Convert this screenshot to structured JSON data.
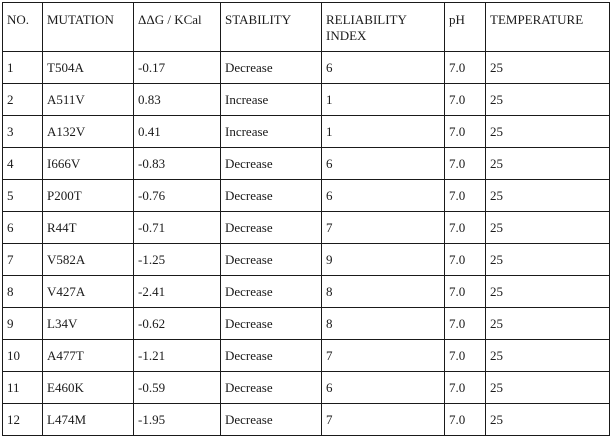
{
  "table": {
    "headers": [
      "NO.",
      "MUTATION",
      "ΔΔG / KCal",
      "STABILITY",
      "RELIABILITY INDEX",
      "pH",
      "TEMPERATURE"
    ],
    "rows": [
      [
        "1",
        "T504A",
        "-0.17",
        "Decrease",
        "6",
        "7.0",
        "25"
      ],
      [
        "2",
        "A511V",
        "0.83",
        "Increase",
        "1",
        "7.0",
        "25"
      ],
      [
        "3",
        "A132V",
        "0.41",
        "Increase",
        "1",
        "7.0",
        "25"
      ],
      [
        "4",
        "I666V",
        "-0.83",
        "Decrease",
        "6",
        "7.0",
        "25"
      ],
      [
        "5",
        "P200T",
        "-0.76",
        "Decrease",
        "6",
        "7.0",
        "25"
      ],
      [
        "6",
        "R44T",
        "-0.71",
        "Decrease",
        "7",
        "7.0",
        "25"
      ],
      [
        "7",
        "V582A",
        "-1.25",
        "Decrease",
        "9",
        "7.0",
        "25"
      ],
      [
        "8",
        "V427A",
        "-2.41",
        "Decrease",
        "8",
        "7.0",
        "25"
      ],
      [
        "9",
        "L34V",
        "-0.62",
        "Decrease",
        "8",
        "7.0",
        "25"
      ],
      [
        "10",
        "A477T",
        "-1.21",
        "Decrease",
        "7",
        "7.0",
        "25"
      ],
      [
        "11",
        "E460K",
        "-0.59",
        "Decrease",
        "6",
        "7.0",
        "25"
      ],
      [
        "12",
        "L474M",
        "-1.95",
        "Decrease",
        "7",
        "7.0",
        "25"
      ]
    ]
  }
}
